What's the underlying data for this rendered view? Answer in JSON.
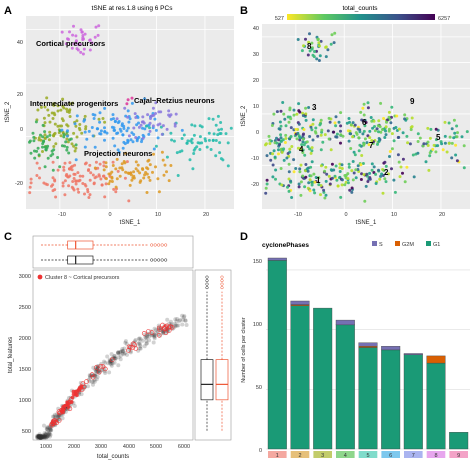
{
  "panels": {
    "A": {
      "label": "A",
      "title": "tSNE at res.1.8 using 6 PCs",
      "xlabel": "tSNE_1",
      "ylabel": "tSNE_2",
      "xticks": [
        "-10",
        "0",
        "10",
        "20"
      ],
      "yticks": [
        "-20",
        "0",
        "20",
        "40"
      ],
      "cluster_labels": [
        "Cortical precursors",
        "Intermediate progenitors",
        "Cajal−Retzius neurons",
        "Projection neurons"
      ]
    },
    "B": {
      "label": "B",
      "title": "total_counts",
      "colorbar_min": "527",
      "colorbar_max": "6257",
      "xlabel": "tSNE_1",
      "ylabel": "tSNE_2",
      "xticks": [
        "-10",
        "0",
        "10",
        "20"
      ],
      "yticks": [
        "-20",
        "-10",
        "0",
        "10",
        "20",
        "30",
        "40"
      ],
      "cluster_numbers": [
        "1",
        "2",
        "3",
        "4",
        "5",
        "6",
        "7",
        "8",
        "9"
      ]
    },
    "C": {
      "label": "C",
      "legend": "Cluster 8 ~ Cortical precursors",
      "xlabel": "total_counts",
      "ylabel": "total_features",
      "xticks": [
        "1000",
        "2000",
        "3000",
        "4000",
        "5000",
        "6000"
      ],
      "yticks": [
        "500",
        "1000",
        "1500",
        "2000",
        "2500",
        "3000"
      ]
    },
    "D": {
      "label": "D",
      "title": "cyclonePhases",
      "ylabel": "Number of cells per cluster",
      "yticks": [
        "0",
        "50",
        "100",
        "150"
      ]
    }
  },
  "chart_data": [
    {
      "type": "scatter",
      "panel": "A",
      "title": "tSNE at res.1.8 using 6 PCs",
      "xlabel": "tSNE_1",
      "ylabel": "tSNE_2",
      "xlim": [
        -17,
        26
      ],
      "ylim": [
        -27,
        45
      ],
      "clusters": [
        {
          "label": "Cortical precursors",
          "color": "#cc66dd",
          "center": [
            -5,
            37
          ],
          "spread": [
            2,
            3
          ],
          "n": 35
        },
        {
          "label": "Intermediate progenitors",
          "color": "#99aa22",
          "center": [
            -10,
            5
          ],
          "spread": [
            3.5,
            5
          ],
          "n": 90
        },
        {
          "label": "Cajal−Retzius neurons",
          "color": "#dd3399",
          "center": [
            4,
            13
          ],
          "spread": [
            1,
            1
          ],
          "n": 3
        },
        {
          "label": "Projection neurons",
          "color": "#ee7766",
          "center": [
            -7,
            -15
          ],
          "spread": [
            5,
            3.5
          ],
          "n": 110
        },
        {
          "label": "",
          "color": "#33aa55",
          "center": [
            -13,
            -4
          ],
          "spread": [
            3,
            4
          ],
          "n": 60
        },
        {
          "label": "",
          "color": "#3399ee",
          "center": [
            2,
            2
          ],
          "spread": [
            5,
            5
          ],
          "n": 100
        },
        {
          "label": "",
          "color": "#22bbaa",
          "center": [
            19,
            -1
          ],
          "spread": [
            4,
            4
          ],
          "n": 70
        },
        {
          "label": "",
          "color": "#dd9922",
          "center": [
            6,
            -13
          ],
          "spread": [
            4,
            3
          ],
          "n": 70
        },
        {
          "label": "",
          "color": "#8877dd",
          "center": [
            9,
            6
          ],
          "spread": [
            3,
            3
          ],
          "n": 40
        }
      ]
    },
    {
      "type": "scatter",
      "panel": "B",
      "title": "total_counts",
      "xlabel": "tSNE_1",
      "ylabel": "tSNE_2",
      "color_range": [
        527,
        6257
      ],
      "xlim": [
        -17,
        26
      ],
      "ylim": [
        -27,
        45
      ]
    },
    {
      "type": "scatter",
      "panel": "C",
      "xlabel": "total_counts",
      "ylabel": "total_features",
      "xlim": [
        500,
        6500
      ],
      "ylim": [
        400,
        3150
      ],
      "series": [
        {
          "name": "Cluster 8 ~ Cortical precursors",
          "color": "#ee3333"
        }
      ],
      "boxplot_x": {
        "q1": 1800,
        "median": 2100,
        "q3": 2750,
        "whisker_low": 800,
        "whisker_high": 4800
      },
      "boxplot_y": {
        "q1": 1050,
        "median": 1300,
        "q3": 1700,
        "whisker_low": 550,
        "whisker_high": 2800
      }
    },
    {
      "type": "bar",
      "panel": "D",
      "title": "cyclonePhases",
      "ylabel": "Number of cells per cluster",
      "ylim": [
        0,
        165
      ],
      "categories": [
        "1",
        "2",
        "3",
        "4",
        "5",
        "6",
        "7",
        "8",
        "9"
      ],
      "category_colors": [
        "#f4a8a0",
        "#e6c07a",
        "#c2cc6a",
        "#8ed68c",
        "#80dccb",
        "#7dc8ee",
        "#aab4f0",
        "#e7a6ee",
        "#f3a3c7"
      ],
      "series": [
        {
          "name": "G1",
          "color": "#1a9a76",
          "values": [
            158,
            120,
            118,
            104,
            85,
            83,
            79,
            72,
            14
          ]
        },
        {
          "name": "G2M",
          "color": "#d95f02",
          "values": [
            0,
            1,
            0,
            0,
            1,
            0,
            0,
            6,
            0
          ]
        },
        {
          "name": "S",
          "color": "#7570b3",
          "values": [
            2,
            3,
            0,
            4,
            3,
            3,
            1,
            0,
            0
          ]
        }
      ]
    }
  ]
}
